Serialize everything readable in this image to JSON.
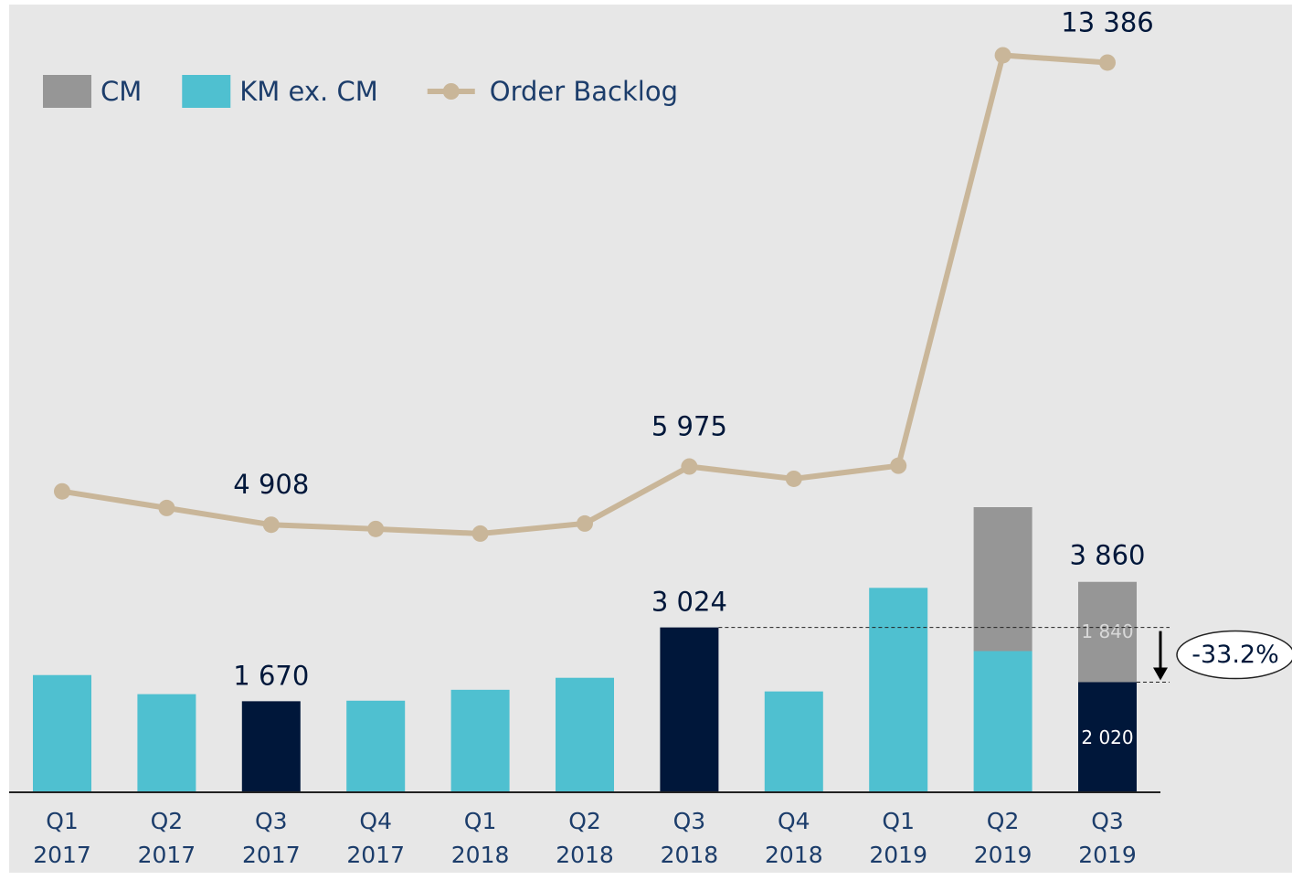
{
  "chart_data": {
    "type": "bar_line",
    "categories": [
      [
        "Q1",
        "2017"
      ],
      [
        "Q2",
        "2017"
      ],
      [
        "Q3",
        "2017"
      ],
      [
        "Q4",
        "2017"
      ],
      [
        "Q1",
        "2018"
      ],
      [
        "Q2",
        "2018"
      ],
      [
        "Q3",
        "2018"
      ],
      [
        "Q4",
        "2018"
      ],
      [
        "Q1",
        "2019"
      ],
      [
        "Q2",
        "2019"
      ],
      [
        "Q3",
        "2019"
      ]
    ],
    "ylim": [
      0,
      14500
    ],
    "series": [
      {
        "name": "CM",
        "kind": "bar",
        "color": "#969696",
        "values": [
          null,
          null,
          null,
          null,
          null,
          null,
          null,
          null,
          null,
          2640,
          1840
        ],
        "value_labels": [
          null,
          null,
          null,
          null,
          null,
          null,
          null,
          null,
          null,
          null,
          "1 840"
        ]
      },
      {
        "name": "KM ex. CM",
        "kind": "bar",
        "color": "#4fc0d0",
        "colors": [
          "#4fc0d0",
          "#4fc0d0",
          "#00173a",
          "#4fc0d0",
          "#4fc0d0",
          "#4fc0d0",
          "#00173a",
          "#4fc0d0",
          "#4fc0d0",
          "#4fc0d0",
          "#00173a"
        ],
        "values": [
          2150,
          1800,
          1670,
          1680,
          1880,
          2100,
          3024,
          1850,
          3750,
          2590,
          2020
        ],
        "value_labels": [
          null,
          null,
          "1 670",
          null,
          null,
          null,
          "3 024",
          null,
          null,
          null,
          "2 020"
        ]
      },
      {
        "name": "Order Backlog",
        "kind": "line",
        "color": "#c9b699",
        "values": [
          5520,
          5215,
          4908,
          4830,
          4745,
          4930,
          5975,
          5750,
          5990,
          13520,
          13386
        ],
        "value_labels": [
          null,
          null,
          "4 908",
          null,
          null,
          null,
          "5 975",
          null,
          null,
          null,
          "13 386"
        ]
      }
    ],
    "totals": {
      "values": [
        null,
        null,
        null,
        null,
        null,
        null,
        null,
        null,
        null,
        null,
        3860
      ],
      "value_labels": [
        null,
        null,
        null,
        null,
        null,
        null,
        null,
        null,
        null,
        null,
        "3 860"
      ]
    },
    "annotation": "-33.2%"
  }
}
